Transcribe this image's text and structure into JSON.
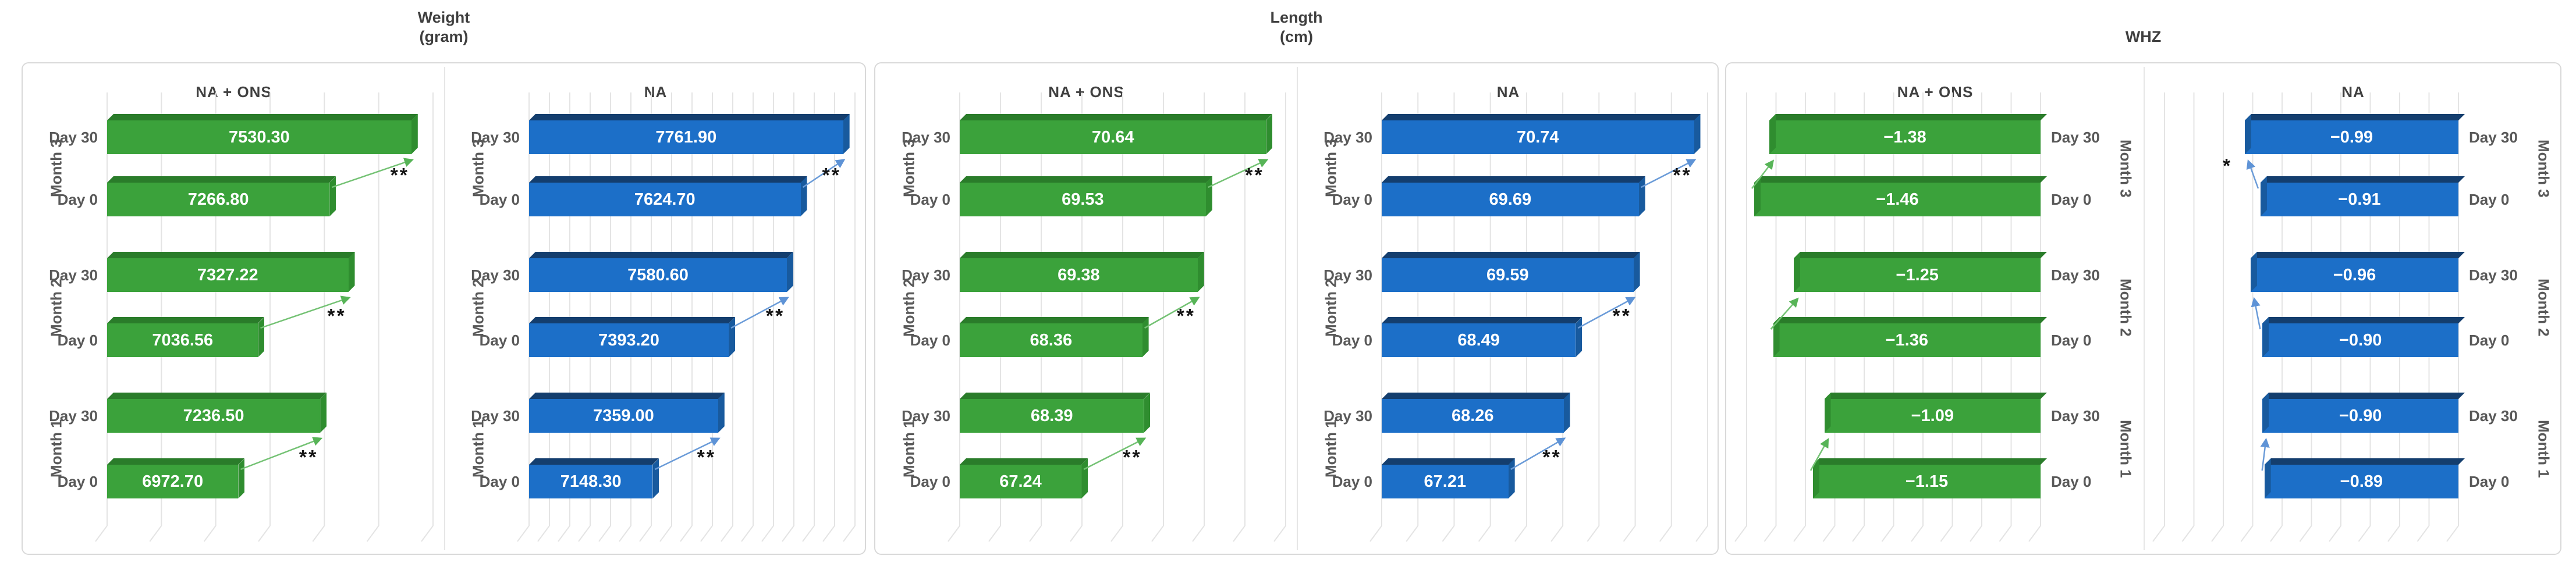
{
  "figure": {
    "description": "Three paired 3D horizontal bar charts comparing NA + ONS vs NA groups at Day 0 and Day 30 for Month 1, Month 2 and Month 3"
  },
  "colors": {
    "green": "#3BA23B",
    "green_dark": "#2A7C2A",
    "blue": "#1C6FC8",
    "blue_dark": "#143E6E",
    "arrow_green": "#74C274",
    "arrow_blue": "#6A9BD8",
    "gridline": "#E4E4E4",
    "border": "#D9D9D9",
    "heading_text": "#404040",
    "label_text": "#595959",
    "significance_text": "#141414"
  },
  "chart_data": [
    {
      "type": "bar",
      "title": [
        "Weight",
        "(gram)"
      ],
      "panels": [
        {
          "header": "NA + ONS",
          "series_color": "green",
          "bar_anchor": "left",
          "axis": {
            "min": 6550,
            "max": 7600,
            "gridline_count": 7
          },
          "months": [
            {
              "month": "Month 3",
              "significance": "**",
              "bars": [
                {
                  "day": "Day 30",
                  "value": 7530.3,
                  "label": "7530.30"
                },
                {
                  "day": "Day 0",
                  "value": 7266.8,
                  "label": "7266.80"
                }
              ]
            },
            {
              "month": "Month 2",
              "significance": "**",
              "bars": [
                {
                  "day": "Day 30",
                  "value": 7327.22,
                  "label": "7327.22"
                },
                {
                  "day": "Day 0",
                  "value": 7036.56,
                  "label": "7036.56"
                }
              ]
            },
            {
              "month": "Month 1",
              "significance": "**",
              "bars": [
                {
                  "day": "Day 30",
                  "value": 7236.5,
                  "label": "7236.50"
                },
                {
                  "day": "Day 0",
                  "value": 6972.7,
                  "label": "6972.70"
                }
              ]
            }
          ]
        },
        {
          "header": "NA",
          "series_color": "blue",
          "bar_anchor": "left",
          "axis": {
            "min": 6750,
            "max": 7800,
            "gridline_count": 17
          },
          "months": [
            {
              "month": "Month 3",
              "significance": "**",
              "bars": [
                {
                  "day": "Day 30",
                  "value": 7761.9,
                  "label": "7761.90"
                },
                {
                  "day": "Day 0",
                  "value": 7624.7,
                  "label": "7624.70"
                }
              ]
            },
            {
              "month": "Month 2",
              "significance": "**",
              "bars": [
                {
                  "day": "Day 30",
                  "value": 7580.6,
                  "label": "7580.60"
                },
                {
                  "day": "Day 0",
                  "value": 7393.2,
                  "label": "7393.20"
                }
              ]
            },
            {
              "month": "Month 1",
              "significance": "**",
              "bars": [
                {
                  "day": "Day 30",
                  "value": 7359.0,
                  "label": "7359.00"
                },
                {
                  "day": "Day 0",
                  "value": 7148.3,
                  "label": "7148.30"
                }
              ]
            }
          ]
        }
      ]
    },
    {
      "type": "bar",
      "title": [
        "Length",
        "(cm)"
      ],
      "panels": [
        {
          "header": "NA + ONS",
          "series_color": "green",
          "bar_anchor": "left",
          "axis": {
            "min": 65,
            "max": 71,
            "gridline_count": 9
          },
          "months": [
            {
              "month": "Month 3",
              "significance": "**",
              "bars": [
                {
                  "day": "Day 30",
                  "value": 70.64,
                  "label": "70.64"
                },
                {
                  "day": "Day 0",
                  "value": 69.53,
                  "label": "69.53"
                }
              ]
            },
            {
              "month": "Month 2",
              "significance": "**",
              "bars": [
                {
                  "day": "Day 30",
                  "value": 69.38,
                  "label": "69.38"
                },
                {
                  "day": "Day 0",
                  "value": 68.36,
                  "label": "68.36"
                }
              ]
            },
            {
              "month": "Month 1",
              "significance": "**",
              "bars": [
                {
                  "day": "Day 30",
                  "value": 68.39,
                  "label": "68.39"
                },
                {
                  "day": "Day 0",
                  "value": 67.24,
                  "label": "67.24"
                }
              ]
            }
          ]
        },
        {
          "header": "NA",
          "series_color": "blue",
          "bar_anchor": "left",
          "axis": {
            "min": 64.8,
            "max": 71,
            "gridline_count": 10
          },
          "months": [
            {
              "month": "Month 3",
              "significance": "**",
              "bars": [
                {
                  "day": "Day 30",
                  "value": 70.74,
                  "label": "70.74"
                },
                {
                  "day": "Day 0",
                  "value": 69.69,
                  "label": "69.69"
                }
              ]
            },
            {
              "month": "Month 2",
              "significance": "**",
              "bars": [
                {
                  "day": "Day 30",
                  "value": 69.59,
                  "label": "69.59"
                },
                {
                  "day": "Day 0",
                  "value": 68.49,
                  "label": "68.49"
                }
              ]
            },
            {
              "month": "Month 1",
              "significance": "**",
              "bars": [
                {
                  "day": "Day 30",
                  "value": 68.26,
                  "label": "68.26"
                },
                {
                  "day": "Day 0",
                  "value": 67.21,
                  "label": "67.21"
                }
              ]
            }
          ]
        }
      ]
    },
    {
      "type": "bar",
      "title": [
        "WHZ"
      ],
      "panels": [
        {
          "header": "NA + ONS",
          "series_color": "green",
          "bar_anchor": "right",
          "axis": {
            "min": -1.5,
            "max": 0.05,
            "gridline_count": 11
          },
          "months": [
            {
              "month": "Month 3",
              "significance": null,
              "bars": [
                {
                  "day": "Day 30",
                  "value": -1.38,
                  "label": "−1.38"
                },
                {
                  "day": "Day 0",
                  "value": -1.46,
                  "label": "−1.46"
                }
              ]
            },
            {
              "month": "Month 2",
              "significance": null,
              "bars": [
                {
                  "day": "Day 30",
                  "value": -1.25,
                  "label": "−1.25"
                },
                {
                  "day": "Day 0",
                  "value": -1.36,
                  "label": "−1.36"
                }
              ]
            },
            {
              "month": "Month 1",
              "significance": null,
              "bars": [
                {
                  "day": "Day 30",
                  "value": -1.09,
                  "label": "−1.09"
                },
                {
                  "day": "Day 0",
                  "value": -1.15,
                  "label": "−1.15"
                }
              ]
            }
          ]
        },
        {
          "header": "NA",
          "series_color": "blue",
          "bar_anchor": "right",
          "axis": {
            "min": -1.4,
            "max": 0.1,
            "gridline_count": 11
          },
          "months": [
            {
              "month": "Month 3",
              "significance": "*",
              "bars": [
                {
                  "day": "Day 30",
                  "value": -0.99,
                  "label": "−0.99"
                },
                {
                  "day": "Day 0",
                  "value": -0.91,
                  "label": "−0.91"
                }
              ]
            },
            {
              "month": "Month 2",
              "significance": null,
              "bars": [
                {
                  "day": "Day 30",
                  "value": -0.96,
                  "label": "−0.96"
                },
                {
                  "day": "Day 0",
                  "value": -0.9,
                  "label": "−0.90"
                }
              ]
            },
            {
              "month": "Month 1",
              "significance": null,
              "bars": [
                {
                  "day": "Day 30",
                  "value": -0.9,
                  "label": "−0.90"
                },
                {
                  "day": "Day 0",
                  "value": -0.89,
                  "label": "−0.89"
                }
              ]
            }
          ]
        }
      ]
    }
  ]
}
